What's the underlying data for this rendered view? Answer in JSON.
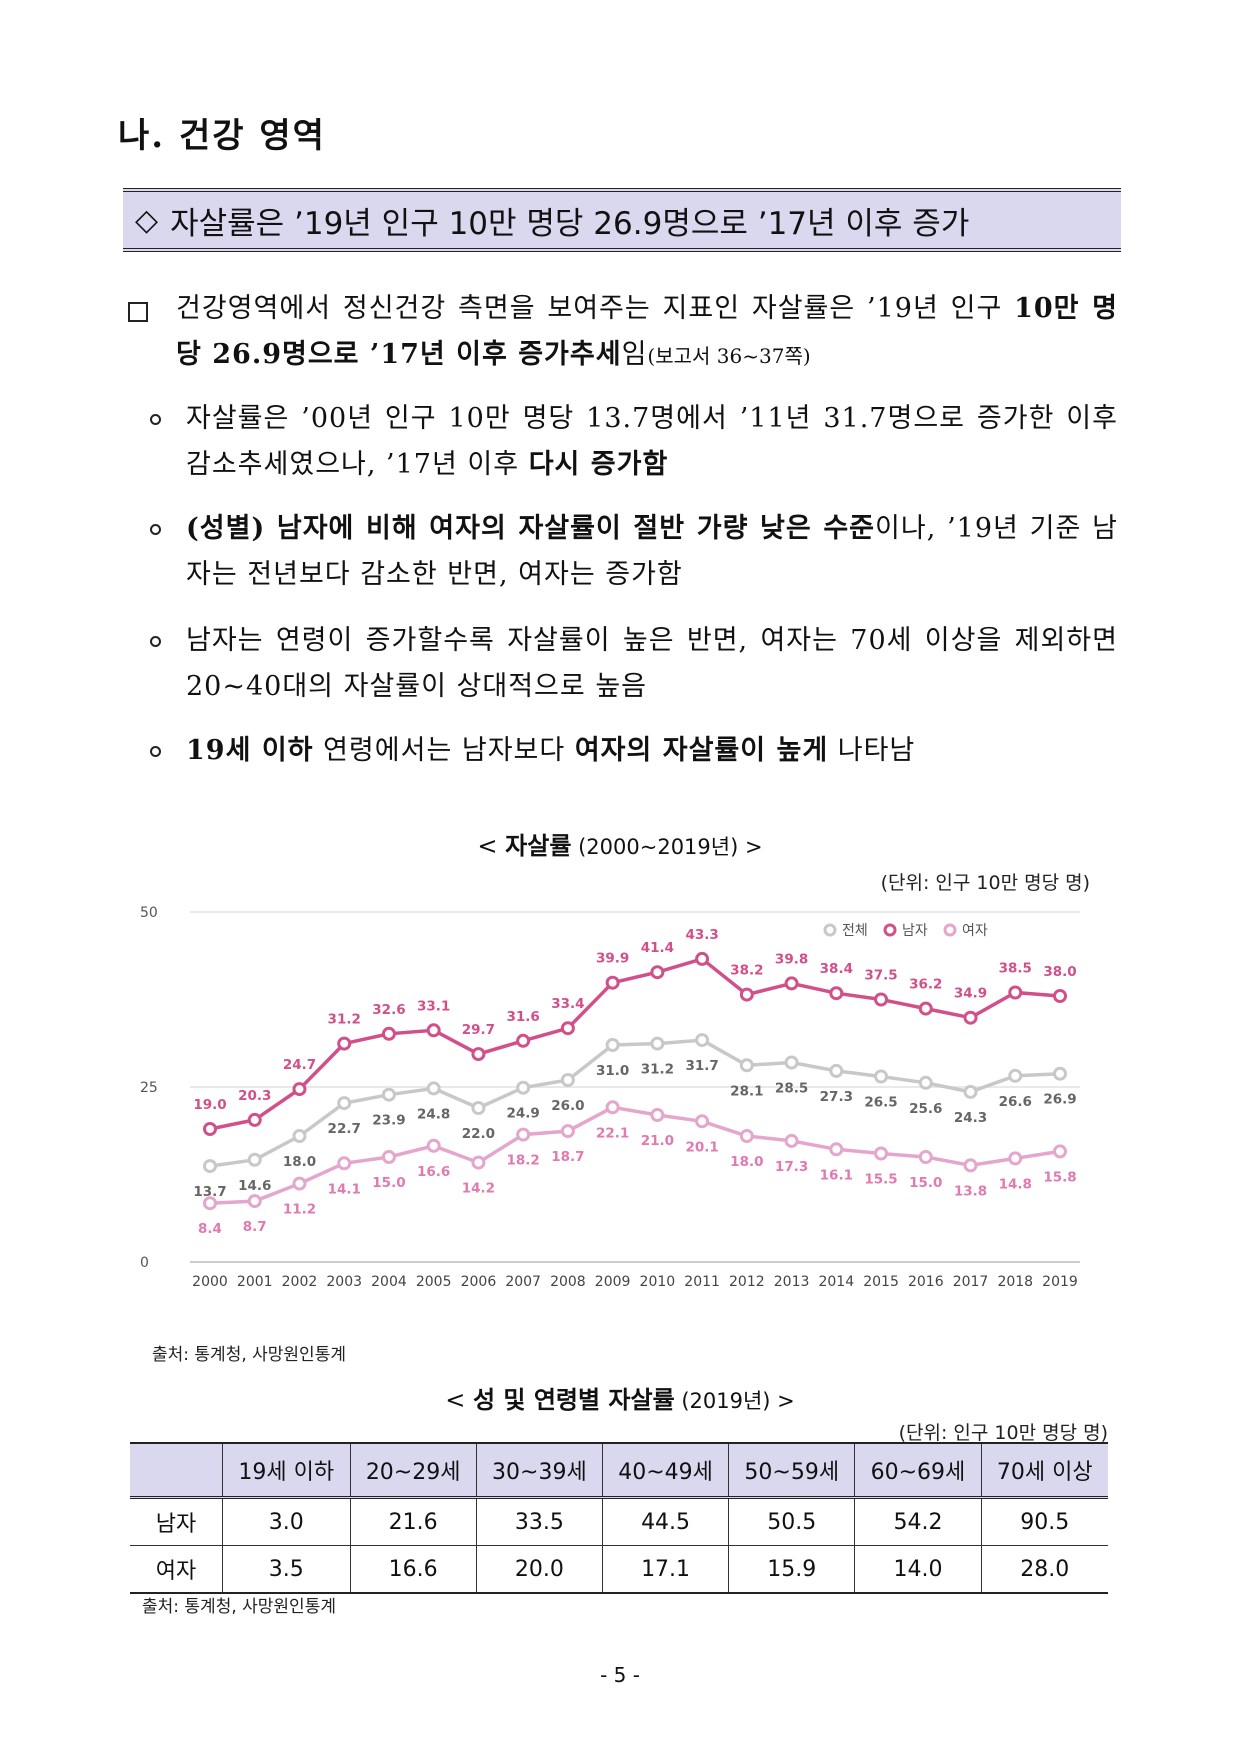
{
  "section": {
    "title": "나. 건강 영역"
  },
  "headline": {
    "diamond": "◇",
    "text": "자살률은 ’19년 인구 10만 명당 26.9명으로 ’17년 이후 증가"
  },
  "summary": {
    "plain1": "건강영역에서 정신건강 측면을 보여주는 지표인 자살률은 ’19년 인구",
    "bold1": "10만 명당 26.9명으로 ’17년 이후 증가추세",
    "plain2": "임",
    "ref": "(보고서 36~37쪽)"
  },
  "bullets": {
    "b1_plain": "자살률은 ’00년 인구 10만 명당 13.7명에서 ’11년 31.7명으로 증가한 이후 감소추세였으나, ’17년 이후",
    "b1_bold": "다시 증가함",
    "b2_bold": "(성별) 남자에 비해 여자의 자살률이 절반 가량 낮은 수준",
    "b2_plain": "이나, ’19년 기준 남자는 전년보다 감소한 반면, 여자는 증가함",
    "b3_plain": "남자는 연령이 증가할수록 자살률이 높은 반면, 여자는 70세 이상을 제외하면 20~40대의 자살률이 상대적으로 높음",
    "b4_bold1": "19세 이하",
    "b4_plain1": " 연령에서는 남자보다 ",
    "b4_bold2": "여자의 자살률이 높게",
    "b4_plain2": " 나타남"
  },
  "chart": {
    "title_open": "< ",
    "title_bold": "자살률",
    "title_range": " (2000~2019년) >",
    "unit": "(단위: 인구 10만 명당 명)",
    "source": "출처: 통계청, 사망원인통계"
  },
  "colors": {
    "total": "#c8c8c8",
    "male": "#d2508a",
    "female": "#e4a6cc",
    "header_bg": "#dad8ee"
  },
  "chart_data": {
    "type": "line",
    "title": "자살률 (2000~2019년)",
    "ylabel": "인구 10만 명당 명",
    "ylim": [
      0,
      50
    ],
    "yticks": [
      0,
      25,
      50
    ],
    "x": [
      "2000",
      "2001",
      "2002",
      "2003",
      "2004",
      "2005",
      "2006",
      "2007",
      "2008",
      "2009",
      "2010",
      "2011",
      "2012",
      "2013",
      "2014",
      "2015",
      "2016",
      "2017",
      "2018",
      "2019"
    ],
    "series": [
      {
        "name": "전체",
        "color": "#c8c8c8",
        "label_color": "#666666",
        "values": [
          13.7,
          14.6,
          18.0,
          22.7,
          23.9,
          24.8,
          22.0,
          24.9,
          26.0,
          31.0,
          31.2,
          31.7,
          28.1,
          28.5,
          27.3,
          26.5,
          25.6,
          24.3,
          26.6,
          26.9
        ]
      },
      {
        "name": "남자",
        "color": "#d2508a",
        "label_color": "#d2508a",
        "values": [
          19.0,
          20.3,
          24.7,
          31.2,
          32.6,
          33.1,
          29.7,
          31.6,
          33.4,
          39.9,
          41.4,
          43.3,
          38.2,
          39.8,
          38.4,
          37.5,
          36.2,
          34.9,
          38.5,
          38.0
        ]
      },
      {
        "name": "여자",
        "color": "#e4a6cc",
        "label_color": "#e07ab0",
        "values": [
          8.4,
          8.7,
          11.2,
          14.1,
          15.0,
          16.6,
          14.2,
          18.2,
          18.7,
          22.1,
          21.0,
          20.1,
          18.0,
          17.3,
          16.1,
          15.5,
          15.0,
          13.8,
          14.8,
          15.8
        ]
      }
    ],
    "legend": "top-right",
    "grid": true
  },
  "table": {
    "title_open": "< ",
    "title_bold": "성 및 연령별 자살률",
    "title_tail": " (2019년) >",
    "unit": "(단위: 인구 10만 명당 명)",
    "headers": [
      "",
      "19세 이하",
      "20~29세",
      "30~39세",
      "40~49세",
      "50~59세",
      "60~69세",
      "70세 이상"
    ],
    "rows": [
      [
        "남자",
        "3.0",
        "21.6",
        "33.5",
        "44.5",
        "50.5",
        "54.2",
        "90.5"
      ],
      [
        "여자",
        "3.5",
        "16.6",
        "20.0",
        "17.1",
        "15.9",
        "14.0",
        "28.0"
      ]
    ],
    "source": "출처: 통계청, 사망원인통계"
  },
  "page": {
    "number": "- 5 -"
  }
}
